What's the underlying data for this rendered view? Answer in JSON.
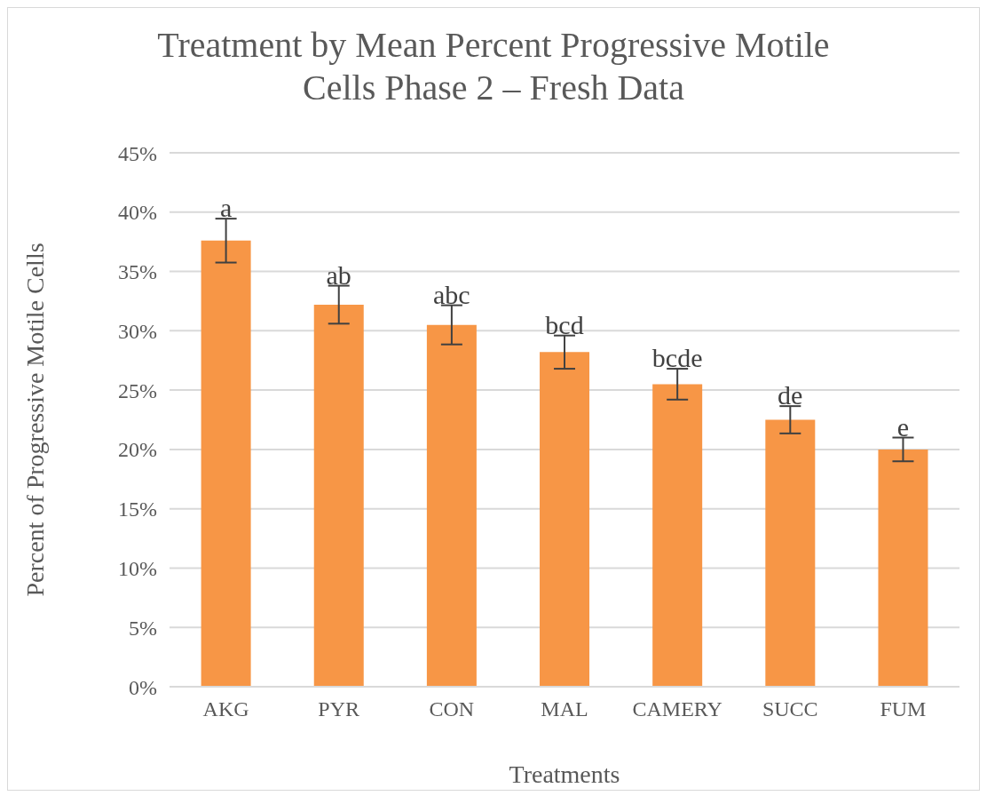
{
  "chart_data": {
    "type": "bar",
    "title": "Treatment by Mean Percent Progressive Motile Cells Phase 2 – Fresh Data",
    "xlabel": "Treatments",
    "ylabel": "Percent of Progressive Motile Cells",
    "categories": [
      "AKG",
      "PYR",
      "CON",
      "MAL",
      "CAMERY",
      "SUCC",
      "FUM"
    ],
    "values": [
      37.6,
      32.2,
      30.5,
      28.2,
      25.5,
      22.5,
      20.0
    ],
    "errors": [
      1.85,
      1.6,
      1.65,
      1.4,
      1.3,
      1.15,
      1.0
    ],
    "color": "#f79646",
    "ylim": [
      0,
      45
    ],
    "yticks": [
      {
        "value": 0,
        "label": "0%"
      },
      {
        "value": 5,
        "label": "5%"
      },
      {
        "value": 10,
        "label": "10%"
      },
      {
        "value": 15,
        "label": "15%"
      },
      {
        "value": 20,
        "label": "20%"
      },
      {
        "value": 25,
        "label": "25%"
      },
      {
        "value": 30,
        "label": "30%"
      },
      {
        "value": 35,
        "label": "35%"
      },
      {
        "value": 40,
        "label": "40%"
      },
      {
        "value": 45,
        "label": "45%"
      }
    ],
    "grid": "y",
    "annotations": [
      {
        "text": "a",
        "x": "AKG",
        "y": 39.45
      },
      {
        "text": "ab",
        "x": "PYR",
        "y": 33.8
      },
      {
        "text": "abc",
        "x": "CON",
        "y": 32.15
      },
      {
        "text": "bcd",
        "x": "MAL",
        "y": 29.6
      },
      {
        "text": "bcde",
        "x": "CAMERY",
        "y": 26.8
      },
      {
        "text": "de",
        "x": "SUCC",
        "y": 23.65
      },
      {
        "text": "e",
        "x": "FUM",
        "y": 21.0
      }
    ]
  }
}
